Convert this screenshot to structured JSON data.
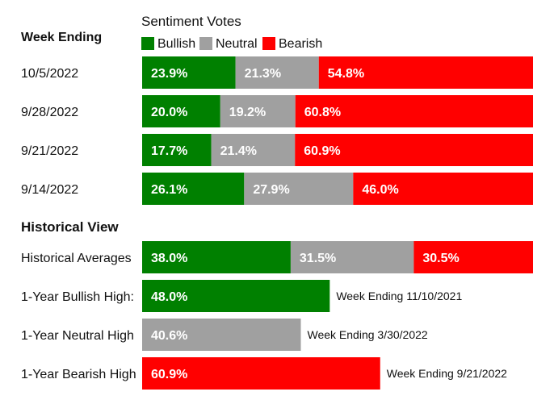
{
  "legend": {
    "title": "Sentiment Votes",
    "items": [
      {
        "label": "Bullish",
        "color": "#008000"
      },
      {
        "label": "Neutral",
        "color": "#a0a0a0"
      },
      {
        "label": "Bearish",
        "color": "#ff0000"
      }
    ]
  },
  "chart_data": [
    {
      "type": "bar",
      "stacked": true,
      "orientation": "horizontal",
      "title": "Week Ending",
      "categories": [
        "10/5/2022",
        "9/28/2022",
        "9/21/2022",
        "9/14/2022"
      ],
      "series": [
        {
          "name": "Bullish",
          "color": "#008000",
          "values": [
            23.9,
            20.0,
            17.7,
            26.1
          ],
          "labels": [
            "23.9%",
            "20.0%",
            "17.7%",
            "26.1%"
          ]
        },
        {
          "name": "Neutral",
          "color": "#a0a0a0",
          "values": [
            21.3,
            19.2,
            21.4,
            27.9
          ],
          "labels": [
            "21.3%",
            "19.2%",
            "21.4%",
            "27.9%"
          ]
        },
        {
          "name": "Bearish",
          "color": "#ff0000",
          "values": [
            54.8,
            60.8,
            60.9,
            46.0
          ],
          "labels": [
            "54.8%",
            "60.8%",
            "60.9%",
            "46.0%"
          ]
        }
      ],
      "xlim": [
        0,
        100
      ]
    },
    {
      "type": "bar",
      "orientation": "horizontal",
      "title": "Historical View",
      "xlim": [
        0,
        100
      ],
      "stacked_row": {
        "category": "Historical Averages",
        "segments": [
          {
            "series": "Bullish",
            "value": 38.0,
            "label": "38.0%",
            "color": "#008000"
          },
          {
            "series": "Neutral",
            "value": 31.5,
            "label": "31.5%",
            "color": "#a0a0a0"
          },
          {
            "series": "Bearish",
            "value": 30.5,
            "label": "30.5%",
            "color": "#ff0000"
          }
        ]
      },
      "single_rows": [
        {
          "category": "1-Year Bullish High:",
          "value": 48.0,
          "label": "48.0%",
          "color": "#008000",
          "note": "Week Ending 11/10/2021"
        },
        {
          "category": "1-Year Neutral High",
          "value": 40.6,
          "label": "40.6%",
          "color": "#a0a0a0",
          "note": "Week Ending 3/30/2022"
        },
        {
          "category": "1-Year Bearish High",
          "value": 60.9,
          "label": "60.9%",
          "color": "#ff0000",
          "note": "Week Ending 9/21/2022"
        }
      ]
    }
  ]
}
